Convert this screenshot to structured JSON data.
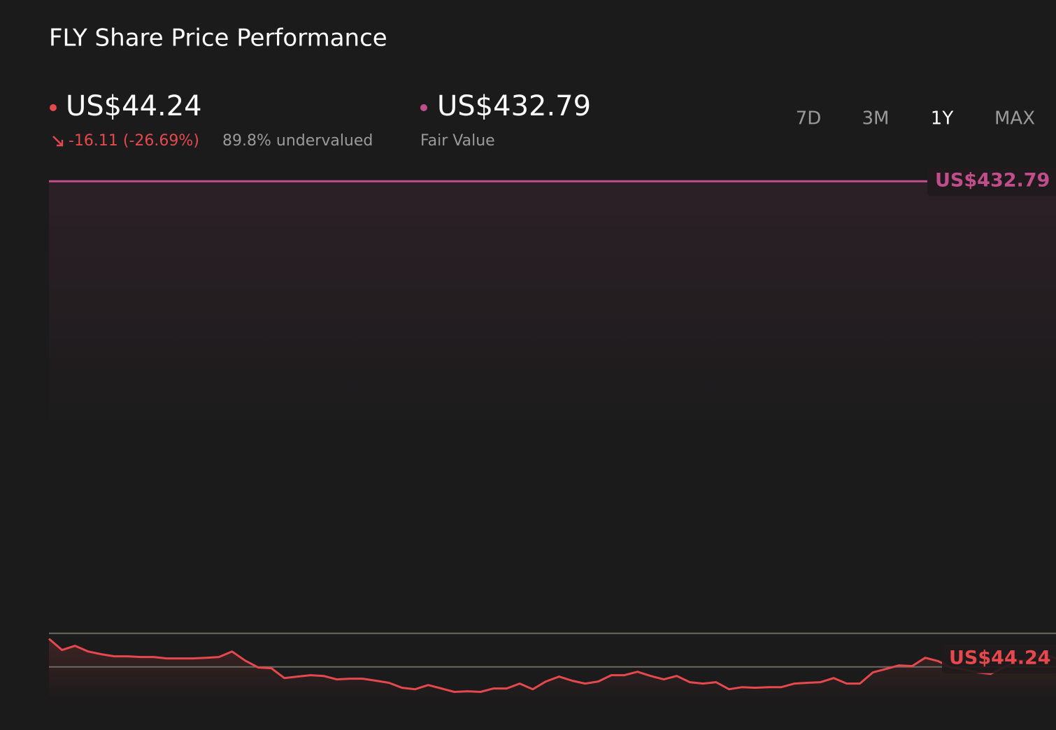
{
  "chart_data": {
    "type": "line",
    "title": "FLY Share Price Performance",
    "ranges": [
      "7D",
      "3M",
      "1Y",
      "MAX"
    ],
    "active_range": "1Y",
    "ylim": [
      10,
      450
    ],
    "reference_lines": [
      64.8,
      37.5
    ],
    "reference_color": "#6b6b60",
    "price": {
      "label": "US$44.24",
      "change": "-16.11 (-26.69%)",
      "valuation": "89.8% undervalued",
      "color": "#e5484d",
      "values": [
        60.35,
        51.2,
        54.6,
        50.0,
        47.8,
        46.1,
        46.1,
        45.5,
        45.5,
        44.4,
        44.4,
        44.4,
        44.9,
        45.5,
        50.0,
        42.6,
        37.0,
        36.4,
        28.4,
        29.6,
        30.7,
        30.1,
        27.3,
        27.9,
        27.9,
        26.2,
        24.5,
        20.5,
        19.3,
        22.7,
        19.9,
        17.1,
        17.6,
        17.1,
        19.9,
        19.9,
        23.9,
        19.3,
        25.6,
        29.6,
        26.2,
        23.9,
        25.6,
        30.7,
        30.7,
        33.5,
        30.1,
        27.3,
        30.1,
        25.0,
        23.9,
        25.0,
        19.3,
        21.0,
        20.5,
        21.0,
        21.0,
        23.9,
        24.5,
        25.0,
        28.4,
        23.9,
        23.9,
        33.0,
        35.8,
        38.7,
        38.1,
        44.9,
        42.1,
        37.0,
        35.3,
        33.0,
        31.8,
        37.0,
        42.6,
        43.2,
        48.3,
        44.24
      ]
    },
    "fair_value": {
      "label": "US$432.79",
      "caption": "Fair Value",
      "value": 432.79,
      "color": "#c04e8a"
    }
  }
}
